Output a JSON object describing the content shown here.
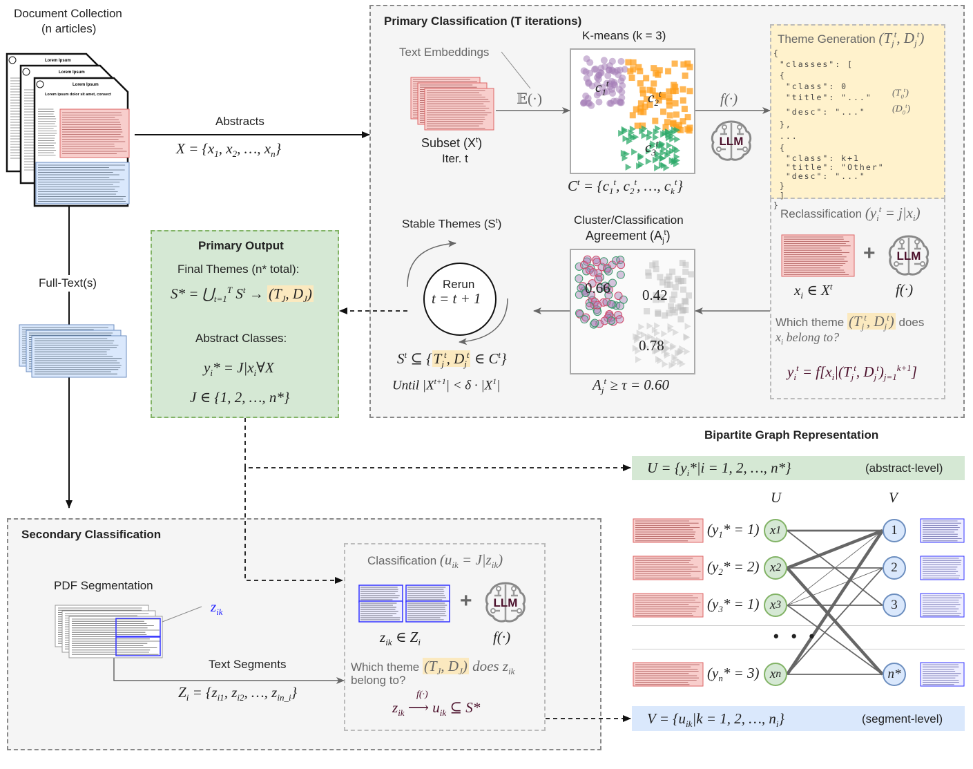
{
  "colors": {
    "primary_bg": "#f5f5f5",
    "output_green": "#d5e8d4",
    "output_border": "#82b366",
    "theme_yellow": "#fff2cc",
    "segment_blue": "#dae8fc",
    "abstract_red": "#f8cecc",
    "kmeans_purple": "#a680b8",
    "kmeans_orange": "#ff9f1c",
    "kmeans_green": "#2eaa6a"
  },
  "collection": {
    "title": "Document Collection",
    "subtitle": "(_{}n articles)",
    "doc_header": "Lorem Ipsum",
    "doc_title": "Lorem ipsum dolor sit amet, consect",
    "abstracts_label": "Abstracts",
    "abstracts_formula": "X = {x_{1}, x_{2}, …, x_{n}}",
    "fulltext_label": "Full-Text(s)"
  },
  "primary": {
    "title": "Primary Classification (T iterations)",
    "text_embeddings": "Text Embeddings",
    "embed_fn": "𝔼(·)",
    "subset": "Subset (X^{t})",
    "iter": "Iter. t",
    "kmeans_label": "K-means (k = 3)",
    "cluster_labels": [
      "c_{1}^{t}",
      "c_{2}^{t}",
      "c_{3}^{t}"
    ],
    "clusters_formula": "C^{t} = {c_{1}^{t}, c_{2}^{t}, …, c_{k}^{t}}",
    "f_label": "f(·)",
    "llm_label": "LLM",
    "theme_title": "Theme Generation ",
    "theme_title_math": "(T_{j}^{t}, D_{j}^{t})",
    "json_lines": [
      "{",
      " \"classes\": [",
      " {",
      "  \"class\": 0",
      "  \"title\": \"...\"",
      "  \"desc\": \"...\"",
      " },",
      " ...",
      " {",
      "  \"class\": k+1",
      "  \"title\": \"Other\"",
      "  \"desc\": \"...\"",
      " }",
      " ]",
      "}"
    ],
    "json_annotations": [
      "(T_{0}^{t})",
      "(D_{0}^{t})"
    ],
    "reclass_title": "Reclassification ",
    "reclass_math": "(y_{i}^{t} = j|x_{i})",
    "plus": "+",
    "xi_in": "x_{i} ∈ X^{t}",
    "which_theme_a": "Which theme ",
    "which_theme_hl": "(T_{j}^{t}, D_{j}^{t})",
    "which_theme_b": " does",
    "belong": "x_{i} belong to?",
    "reclass_formula": "y_{i}^{t} = f[x_{i}|(T_{j}^{t}, D_{j}^{t})_{j=1}^{k+1}]",
    "agreement_title_1": "Cluster/Classification",
    "agreement_title_2": "Agreement (A_{j}^{t})",
    "agreement_values": [
      "0.66",
      "0.42",
      "0.78"
    ],
    "agreement_formula": "A_{j}^{t} ≥ τ = 0.60",
    "stable_title": "Stable Themes (S^{t})",
    "rerun": "Rerun",
    "rerun_formula": "t = t + 1",
    "stable_formula_a": "S^{t} ⊆ {",
    "stable_formula_hl": "T_{j}^{t}, D_{j}^{t}",
    "stable_formula_b": " ∈ C^{t}}",
    "until": "Until |X^{t+1}| < δ · |X^{1}|"
  },
  "output": {
    "title": "Primary Output",
    "final_themes": "Final Themes (n* total):",
    "union_formula_a": "S* = ⋃_{t=1}^{T} S^{t} → ",
    "union_formula_hl": "(T_{J}, D_{J})",
    "abstract_classes": "Abstract Classes:",
    "class_formula": "y_{i}* = J|x_{i}∀X",
    "set_formula": "J ∈ {1, 2, …, n*}"
  },
  "secondary": {
    "title": "Secondary Classification",
    "pdf_seg": "PDF Segmentation",
    "z_label": "z_{ik}",
    "text_segments": "Text Segments",
    "segments_formula": "Z_{i} = {z_{i1}, z_{i2}, …, z_{in_i}}",
    "class_title": "Classification ",
    "class_math": "(u_{ik} = J|z_{ik})",
    "z_in": "z_{ik} ∈ Z_{i}",
    "f_label": "f(·)",
    "plus": "+",
    "which_a": "Which theme ",
    "which_hl": "(T_{J}, D_{J})",
    "which_b": " does z_{ik}",
    "belong": "belong to?",
    "map_formula": "z_{ik} ⟶ u_{ik} ⊆ S*",
    "map_fn": "f(·)",
    "llm_label": "LLM"
  },
  "bipartite": {
    "title": "Bipartite Graph Representation",
    "u_formula": "U = {y_{i}*|i = 1, 2, …, n*}",
    "u_level": "(abstract-level)",
    "v_formula": "V = {u_{ik}|k = 1, 2, …, n_{i}}",
    "v_level": "(segment-level)",
    "u_header": "U",
    "v_header": "V",
    "rows": [
      {
        "label": "(y_{1}* = 1)",
        "u": "x_{1}",
        "v": "1"
      },
      {
        "label": "(y_{2}* = 2)",
        "u": "x_{2}",
        "v": "2"
      },
      {
        "label": "(y_{3}* = 1)",
        "u": "x_{3}",
        "v": "3"
      },
      {
        "label": "(y_{n}* = 3)",
        "u": "x_{n}",
        "v": "n*"
      }
    ],
    "ellipsis": "• • •",
    "edges": [
      {
        "from": 0,
        "to": 0,
        "weight": 3
      },
      {
        "from": 0,
        "to": 2,
        "weight": 2
      },
      {
        "from": 1,
        "to": 0,
        "weight": 5
      },
      {
        "from": 1,
        "to": 1,
        "weight": 2
      },
      {
        "from": 1,
        "to": 3,
        "weight": 5
      },
      {
        "from": 2,
        "to": 0,
        "weight": 1
      },
      {
        "from": 2,
        "to": 1,
        "weight": 1
      },
      {
        "from": 2,
        "to": 2,
        "weight": 2
      },
      {
        "from": 2,
        "to": 3,
        "weight": 2
      },
      {
        "from": 3,
        "to": 0,
        "weight": 5
      },
      {
        "from": 3,
        "to": 1,
        "weight": 2
      },
      {
        "from": 3,
        "to": 3,
        "weight": 2
      }
    ]
  }
}
